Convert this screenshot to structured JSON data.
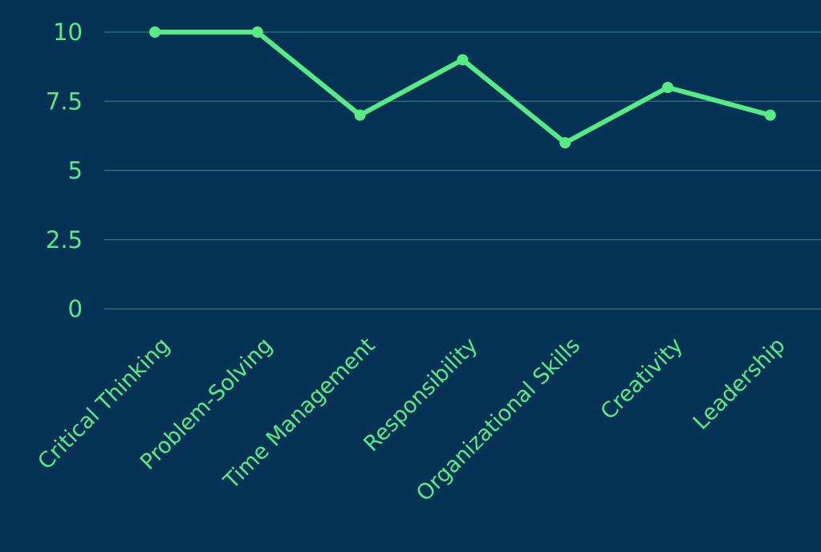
{
  "chart_data": {
    "type": "line",
    "categories": [
      "Critical Thinking",
      "Problem-Solving",
      "Time Management",
      "Responsibility",
      "Organizational Skills",
      "Creativity",
      "Leadership"
    ],
    "series": [
      {
        "values": [
          10,
          10,
          7,
          9,
          6,
          8,
          7
        ]
      }
    ],
    "yticks": [
      {
        "value": 0,
        "label": "0"
      },
      {
        "value": 2.5,
        "label": "2.5"
      },
      {
        "value": 5,
        "label": "5"
      },
      {
        "value": 7.5,
        "label": "7.5"
      },
      {
        "value": 10,
        "label": "10"
      }
    ],
    "ylim": [
      0,
      10
    ],
    "grid": true,
    "legend": "none",
    "colors": {
      "background": "#053356",
      "line": "#57ec83",
      "grid": "#2f7c7e",
      "text": "#57ec83"
    }
  }
}
